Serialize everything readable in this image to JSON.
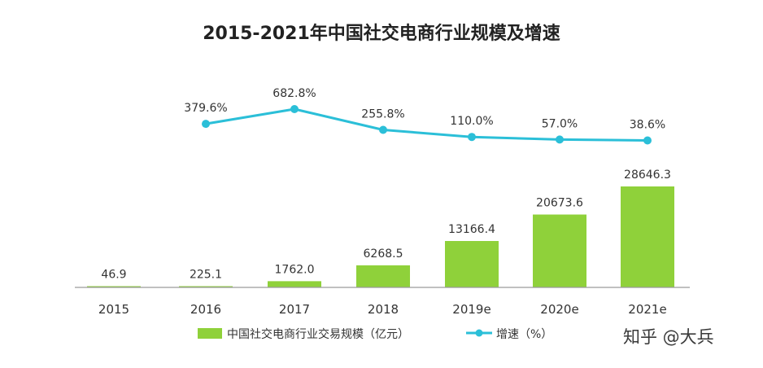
{
  "chart_data": {
    "type": "bar+line",
    "title": "2015-2021年中国社交电商行业规模及增速",
    "categories": [
      "2015",
      "2016",
      "2017",
      "2018",
      "2019e",
      "2020e",
      "2021e"
    ],
    "series": [
      {
        "name": "中国社交电商行业交易规模（亿元）",
        "type": "bar",
        "color": "#8fd13a",
        "values": [
          46.9,
          225.1,
          1762.0,
          6268.5,
          13166.4,
          20673.6,
          28646.3
        ],
        "labels": [
          "46.9",
          "225.1",
          "1762.0",
          "6268.5",
          "13166.4",
          "20673.6",
          "28646.3"
        ]
      },
      {
        "name": "增速（%）",
        "type": "line",
        "color": "#2bbfd8",
        "values": [
          null,
          379.6,
          682.8,
          255.8,
          110.0,
          57.0,
          38.6
        ],
        "labels": [
          "",
          "379.6%",
          "682.8%",
          "255.8%",
          "110.0%",
          "57.0%",
          "38.6%"
        ]
      }
    ],
    "legend": "bottom-center",
    "grid": false
  },
  "watermark": "知乎 @大兵"
}
